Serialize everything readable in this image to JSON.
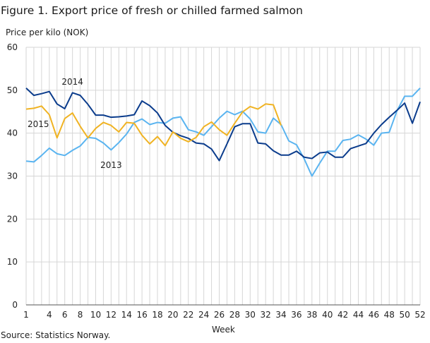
{
  "chart_data": {
    "type": "line",
    "title": "Figure 1. Export price of fresh or chilled farmed salmon",
    "ylabel": "Price per kilo (NOK)",
    "xlabel": "Week",
    "source": "Source: Statistics Norway.",
    "ylim": [
      0,
      60
    ],
    "yticks": [
      0,
      10,
      20,
      30,
      40,
      50,
      60
    ],
    "xlim": [
      1,
      52
    ],
    "xticks": [
      1,
      4,
      6,
      8,
      10,
      12,
      14,
      16,
      18,
      20,
      22,
      24,
      26,
      28,
      30,
      32,
      34,
      36,
      38,
      40,
      42,
      44,
      46,
      48,
      50,
      52
    ],
    "grid": true,
    "series": [
      {
        "name": "2013",
        "color": "#5ab4f0",
        "values": [
          33.5,
          33.3,
          34.8,
          36.5,
          35.2,
          34.8,
          36,
          37,
          39,
          38.8,
          37.7,
          36.1,
          37.8,
          39.8,
          42.5,
          43.3,
          42,
          42.5,
          42.3,
          43.5,
          43.8,
          40.8,
          40.3,
          39.5,
          41.5,
          43.5,
          45.1,
          44.3,
          45.1,
          43.3,
          40.3,
          40,
          43.5,
          42,
          38.2,
          37.3,
          34,
          30,
          33,
          35.8,
          35.8,
          38.3,
          38.6,
          39.6,
          38.6,
          37.2,
          40,
          40.2,
          45.2,
          48.6,
          48.6,
          50.5
        ]
      },
      {
        "name": "2014",
        "color": "#0b3c8c",
        "values": [
          50.5,
          48.8,
          49.2,
          49.7,
          46.8,
          45.7,
          49.4,
          48.8,
          46.7,
          44.2,
          44.2,
          43.7,
          43.8,
          44,
          44.3,
          47.5,
          46.4,
          44.7,
          41.8,
          40.2,
          39.4,
          38.8,
          37.7,
          37.5,
          36.3,
          33.6,
          37.5,
          41.5,
          42.2,
          42.2,
          37.7,
          37.5,
          35.9,
          34.9,
          34.9,
          35.8,
          34.4,
          34.1,
          35.4,
          35.6,
          34.4,
          34.4,
          36.4,
          37,
          37.6,
          40,
          42,
          43.7,
          45.3,
          47,
          42.3,
          47.3
        ]
      },
      {
        "name": "2015",
        "color": "#f0b323",
        "values": [
          45.6,
          45.8,
          46.3,
          44.3,
          38.9,
          43.4,
          44.7,
          41.6,
          38.9,
          41.1,
          42.5,
          41.8,
          40.3,
          42.5,
          42.3,
          39.5,
          37.5,
          39.2,
          37.1,
          40.3,
          38.8,
          38,
          39,
          41.5,
          42.6,
          40.8,
          39.5,
          42.3,
          44.9,
          46.2,
          45.6,
          46.8,
          46.6,
          41.8
        ]
      }
    ]
  }
}
